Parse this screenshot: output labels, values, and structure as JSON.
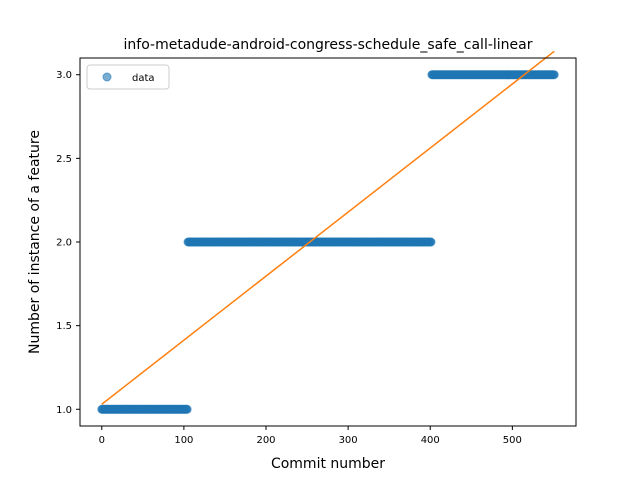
{
  "chart_data": {
    "type": "scatter",
    "title": "info-metadude-android-congress-schedule_safe_call-linear",
    "xlabel": "Commit number",
    "ylabel": "Number of instance of a feature",
    "xlim": [
      -26.5,
      577.5
    ],
    "ylim": [
      0.9,
      3.1
    ],
    "x_ticks": [
      0,
      100,
      200,
      300,
      400,
      500
    ],
    "y_ticks": [
      1.0,
      1.5,
      2.0,
      2.5,
      3.0
    ],
    "x_tick_labels": [
      "0",
      "100",
      "200",
      "300",
      "400",
      "500"
    ],
    "y_tick_labels": [
      "1.0",
      "1.5",
      "2.0",
      "2.5",
      "3.0"
    ],
    "grid": false,
    "legend": {
      "position": "top-left",
      "entries": [
        "data"
      ]
    },
    "series": [
      {
        "name": "data",
        "kind": "scatter",
        "color": "#1f77b4",
        "segments": [
          {
            "x_start": 0,
            "x_end": 104,
            "y": 1.0
          },
          {
            "x_start": 105,
            "x_end": 401,
            "y": 2.0
          },
          {
            "x_start": 402,
            "x_end": 551,
            "y": 3.0
          }
        ]
      },
      {
        "kind": "line",
        "color": "#ff7f0e",
        "x": [
          0,
          551
        ],
        "y": [
          1.03,
          3.14
        ]
      }
    ]
  }
}
